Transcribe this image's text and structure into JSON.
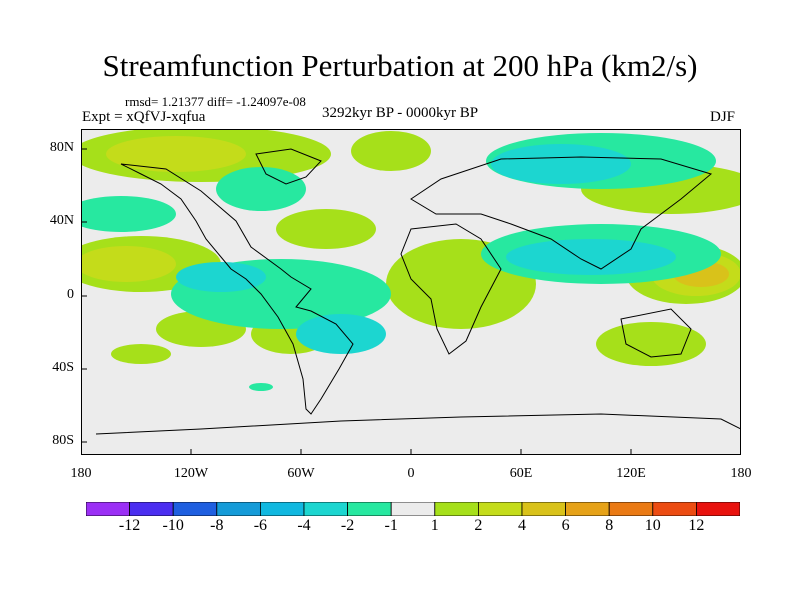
{
  "header": {
    "title": "Streamfunction Perturbation at 200 hPa (km2/s)",
    "stats": "rmsd= 1.21377 diff= -1.24097e-08",
    "experiment": "Expt = xQfVJ-xqfua",
    "period": "3292kyr BP - 0000kyr BP",
    "season": "DJF"
  },
  "axes": {
    "lat_labels": [
      "80N",
      "40N",
      "0",
      "40S",
      "80S"
    ],
    "lon_labels": [
      "180",
      "120W",
      "60W",
      "0",
      "60E",
      "120E",
      "180"
    ]
  },
  "colorbar": {
    "labels": [
      "-12",
      "-10",
      "-8",
      "-6",
      "-4",
      "-2",
      "-1",
      "1",
      "2",
      "4",
      "6",
      "8",
      "10",
      "12"
    ],
    "colors": [
      "#9b30f5",
      "#4b2ef0",
      "#1f5fe0",
      "#159bd8",
      "#11b8e0",
      "#1cd6d0",
      "#27e8a0",
      "#ececec",
      "#a6e01a",
      "#c4dc1a",
      "#d9c21a",
      "#e6a218",
      "#ea7a14",
      "#ec4c12",
      "#e8120e"
    ]
  },
  "colors": {
    "background": "#ececec",
    "neg_light": "#27e8a0",
    "neg_mid": "#1cd6d0",
    "pos_light": "#a6e01a",
    "pos_mid": "#c4dc1a",
    "pos_strong": "#d9c21a"
  }
}
